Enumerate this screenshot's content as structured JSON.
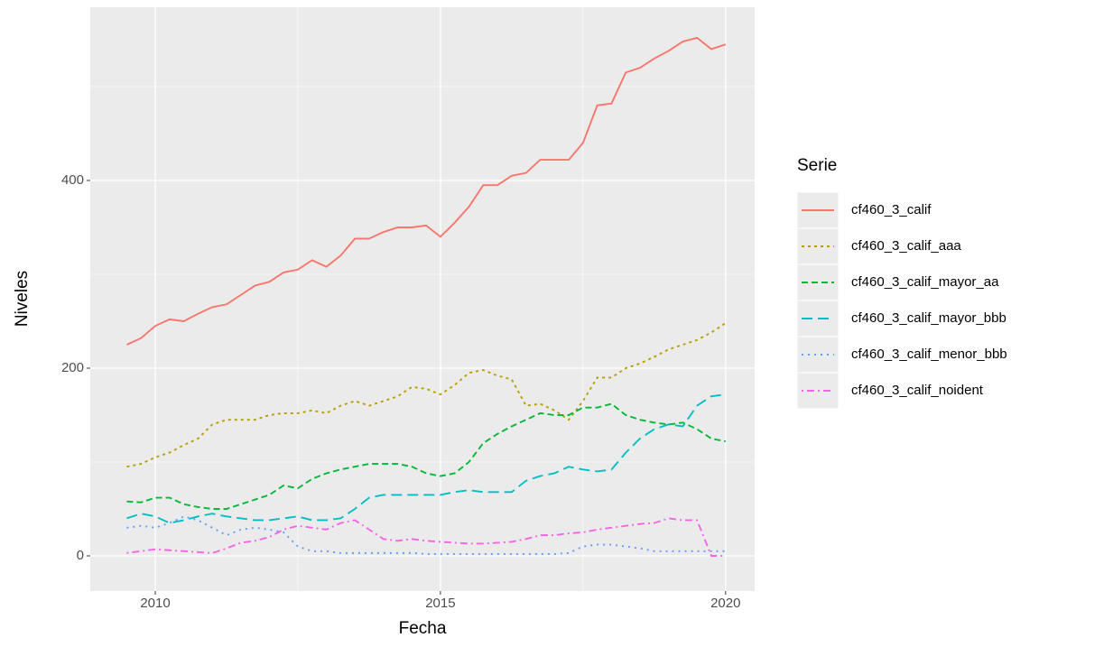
{
  "chart_data": {
    "type": "line",
    "x_label": "Fecha",
    "y_label": "Niveles",
    "legend_title": "Serie",
    "x": [
      2009.5,
      2009.75,
      2010,
      2010.25,
      2010.5,
      2010.75,
      2011,
      2011.25,
      2011.5,
      2011.75,
      2012,
      2012.25,
      2012.5,
      2012.75,
      2013,
      2013.25,
      2013.5,
      2013.75,
      2014,
      2014.25,
      2014.5,
      2014.75,
      2015,
      2015.25,
      2015.5,
      2015.75,
      2016,
      2016.25,
      2016.5,
      2016.75,
      2017,
      2017.25,
      2017.5,
      2017.75,
      2018,
      2018.25,
      2018.5,
      2018.75,
      2019,
      2019.25,
      2019.5,
      2019.75,
      2020
    ],
    "xlim": [
      2008.86,
      2020.51
    ],
    "xticks": [
      2010,
      2015,
      2020
    ],
    "ylim": [
      -37.5,
      584.6
    ],
    "yticks": [
      0,
      200,
      400
    ],
    "grid": true,
    "legend_position": "right",
    "series": [
      {
        "name": "cf460_3_calif",
        "color": "#F8766D",
        "linetype": "solid",
        "values": [
          225,
          232,
          245,
          252,
          250,
          258,
          265,
          268,
          278,
          288,
          292,
          302,
          305,
          315,
          308,
          320,
          338,
          338,
          345,
          350,
          350,
          352,
          340,
          355,
          372,
          395,
          395,
          405,
          408,
          422,
          422,
          422,
          440,
          480,
          482,
          515,
          520,
          530,
          538,
          548,
          552,
          540,
          545
        ]
      },
      {
        "name": "cf460_3_calif_aaa",
        "color": "#B79F00",
        "linetype": "dotted",
        "values": [
          95,
          98,
          105,
          110,
          118,
          125,
          140,
          145,
          145,
          145,
          150,
          152,
          152,
          155,
          152,
          160,
          165,
          160,
          165,
          170,
          180,
          178,
          172,
          182,
          195,
          198,
          192,
          188,
          160,
          162,
          155,
          145,
          165,
          190,
          190,
          200,
          205,
          212,
          220,
          225,
          230,
          238,
          248
        ]
      },
      {
        "name": "cf460_3_calif_mayor_aa",
        "color": "#00BA38",
        "linetype": "dashed",
        "values": [
          58,
          57,
          62,
          62,
          55,
          52,
          50,
          50,
          55,
          60,
          65,
          75,
          72,
          82,
          88,
          92,
          95,
          98,
          98,
          98,
          95,
          88,
          85,
          88,
          100,
          120,
          130,
          138,
          145,
          152,
          150,
          150,
          158,
          158,
          162,
          150,
          145,
          142,
          140,
          142,
          135,
          125,
          122
        ]
      },
      {
        "name": "cf460_3_calif_mayor_bbb",
        "color": "#00BFC4",
        "linetype": "longdash",
        "values": [
          40,
          45,
          42,
          35,
          38,
          42,
          45,
          42,
          40,
          38,
          38,
          40,
          42,
          38,
          38,
          40,
          50,
          62,
          65,
          65,
          65,
          65,
          65,
          68,
          70,
          68,
          68,
          68,
          80,
          85,
          88,
          95,
          92,
          90,
          92,
          110,
          125,
          135,
          140,
          138,
          160,
          170,
          172
        ]
      },
      {
        "name": "cf460_3_calif_menor_bbb",
        "color": "#619CFF",
        "linetype": "dotted2",
        "values": [
          30,
          32,
          30,
          35,
          42,
          38,
          30,
          22,
          28,
          30,
          28,
          25,
          10,
          5,
          5,
          3,
          3,
          3,
          3,
          3,
          3,
          2,
          2,
          2,
          2,
          2,
          2,
          2,
          2,
          2,
          2,
          3,
          10,
          12,
          12,
          10,
          8,
          5,
          5,
          5,
          5,
          5,
          5
        ]
      },
      {
        "name": "cf460_3_calif_noident",
        "color": "#F564E3",
        "linetype": "dotdash",
        "values": [
          3,
          5,
          7,
          6,
          5,
          4,
          3,
          8,
          14,
          16,
          20,
          28,
          32,
          30,
          28,
          35,
          38,
          28,
          18,
          16,
          18,
          16,
          15,
          14,
          13,
          13,
          14,
          15,
          18,
          22,
          22,
          24,
          25,
          28,
          30,
          32,
          34,
          35,
          40,
          38,
          38,
          0,
          0
        ]
      }
    ]
  }
}
